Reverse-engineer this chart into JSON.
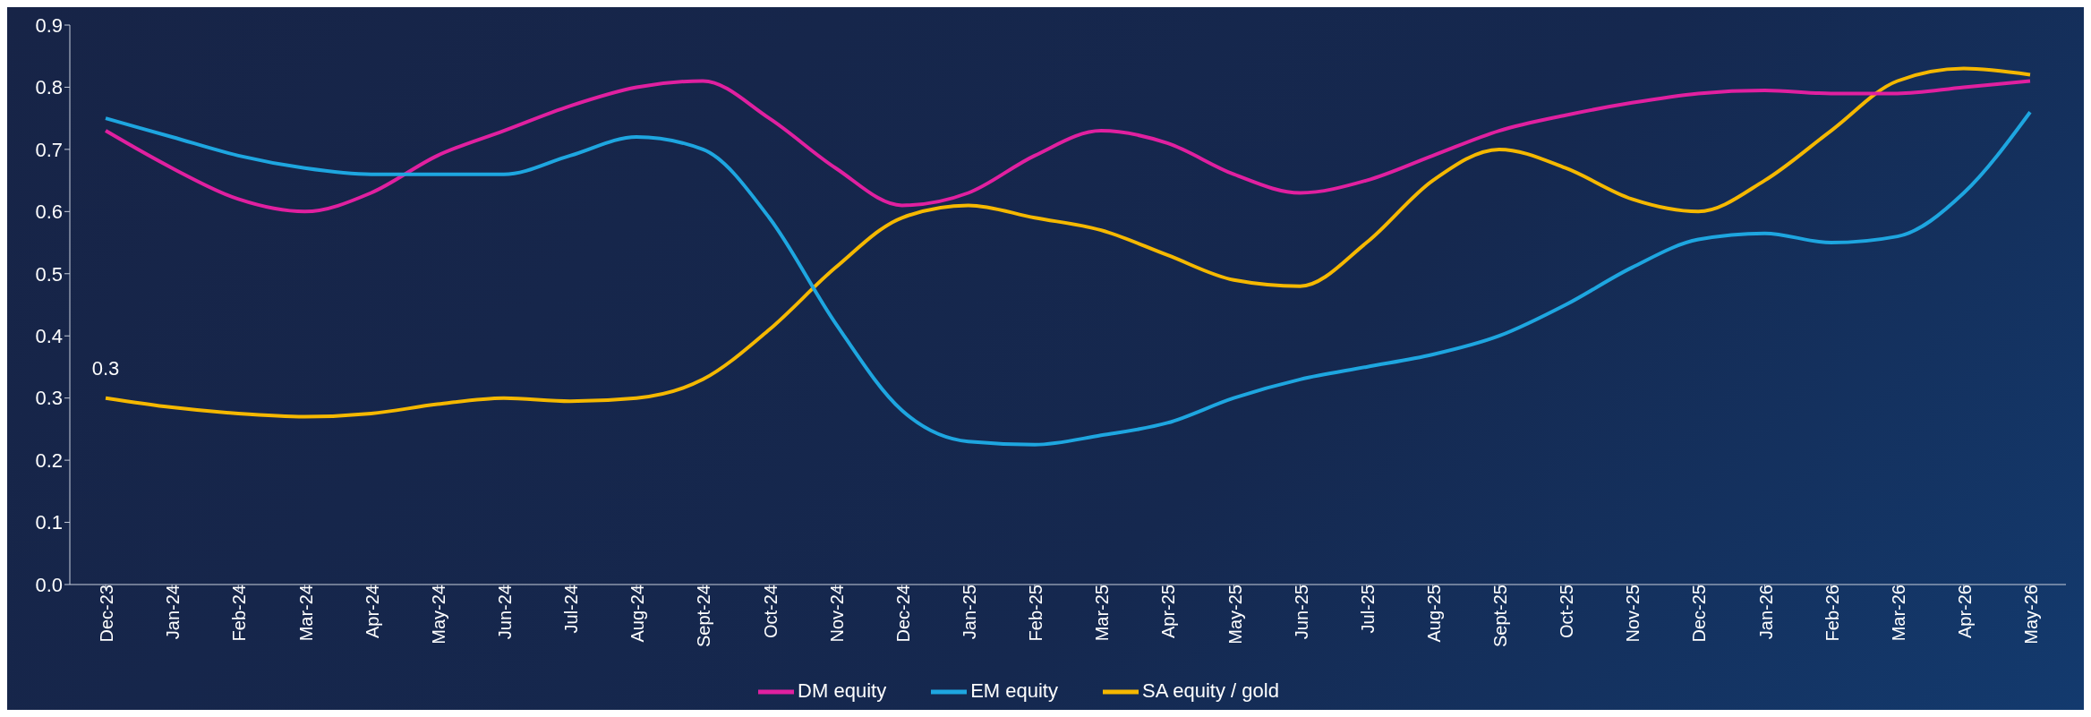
{
  "chart_data": {
    "type": "line",
    "categories": [
      "Dec-23",
      "Jan-24",
      "Feb-24",
      "Mar-24",
      "Apr-24",
      "May-24",
      "Jun-24",
      "Jul-24",
      "Aug-24",
      "Sept-24",
      "Oct-24",
      "Nov-24",
      "Dec-24",
      "Jan-25",
      "Feb-25",
      "Mar-25",
      "Apr-25",
      "May-25",
      "Jun-25",
      "Jul-25",
      "Aug-25",
      "Sept-25",
      "Oct-25",
      "Nov-25",
      "Dec-25",
      "Jan-26",
      "Feb-26",
      "Mar-26",
      "Apr-26",
      "May-26"
    ],
    "series": [
      {
        "name": "SA equity / gold",
        "color": "#f5b800",
        "values": [
          0.3,
          0.285,
          0.275,
          0.27,
          0.275,
          0.29,
          0.3,
          0.295,
          0.3,
          0.33,
          0.41,
          0.51,
          0.59,
          0.61,
          0.59,
          0.57,
          0.53,
          0.49,
          0.48,
          0.55,
          0.65,
          0.7,
          0.67,
          0.62,
          0.6,
          0.65,
          0.73,
          0.81,
          0.83,
          0.82
        ]
      },
      {
        "name": "DM equity",
        "color": "#e020a0",
        "values": [
          0.73,
          0.67,
          0.62,
          0.6,
          0.63,
          0.69,
          0.73,
          0.77,
          0.8,
          0.81,
          0.75,
          0.67,
          0.61,
          0.63,
          0.69,
          0.73,
          0.71,
          0.66,
          0.63,
          0.65,
          0.69,
          0.73,
          0.755,
          0.775,
          0.79,
          0.795,
          0.79,
          0.79,
          0.8,
          0.81
        ]
      },
      {
        "name": "EM equity",
        "color": "#1ea6e0",
        "values": [
          0.75,
          0.72,
          0.69,
          0.67,
          0.66,
          0.66,
          0.66,
          0.69,
          0.72,
          0.7,
          0.59,
          0.42,
          0.28,
          0.23,
          0.225,
          0.24,
          0.26,
          0.3,
          0.33,
          0.35,
          0.37,
          0.4,
          0.45,
          0.51,
          0.555,
          0.565,
          0.55,
          0.56,
          0.63,
          0.76
        ]
      }
    ],
    "annotations": [
      {
        "text": "0.3",
        "x": "Dec-23",
        "y": 0.3
      }
    ],
    "ylim": [
      0,
      0.9
    ],
    "yticks": [
      {
        "value": 0,
        "label": "0.0"
      },
      0.1,
      0.2,
      0.3,
      0.4,
      0.5,
      0.6,
      0.7,
      0.8,
      0.9
    ],
    "grid": false,
    "legend": "bottom",
    "marker": "none",
    "line_style": "solid"
  }
}
